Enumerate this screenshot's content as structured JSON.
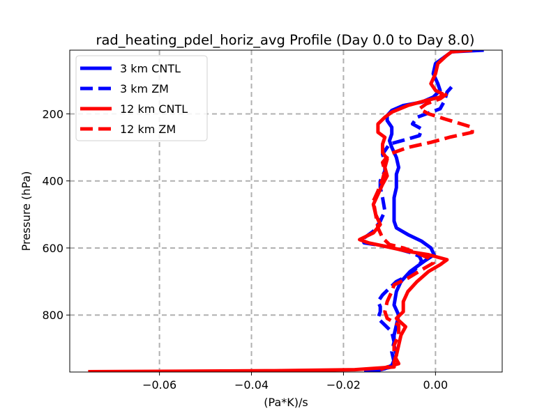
{
  "chart_data": {
    "type": "line",
    "title": "rad_heating_pdel_horiz_avg Profile (Day 0.0 to Day 8.0)",
    "xlabel": "(Pa*K)/s",
    "ylabel": "Pressure (hPa)",
    "xlim": [
      -0.0795,
      0.0145
    ],
    "ylim": [
      970,
      10
    ],
    "y_inverted": true,
    "grid": true,
    "legend_position": "upper-left",
    "xticks": [
      -0.06,
      -0.04,
      -0.02,
      0.0
    ],
    "xtick_labels": [
      "−0.06",
      "−0.04",
      "−0.02",
      "0.00"
    ],
    "yticks": [
      200,
      400,
      600,
      800
    ],
    "ytick_labels": [
      "200",
      "400",
      "600",
      "800"
    ],
    "series": [
      {
        "name": "3 km CNTL",
        "color": "#0000ff",
        "style": "solid",
        "points": [
          [
            0.0105,
            10
          ],
          [
            0.0035,
            15
          ],
          [
            0.0025,
            25
          ],
          [
            0.0,
            50
          ],
          [
            -0.0005,
            80
          ],
          [
            0.0005,
            110
          ],
          [
            0.001,
            130
          ],
          [
            -0.0005,
            150
          ],
          [
            -0.003,
            165
          ],
          [
            -0.007,
            175
          ],
          [
            -0.0095,
            190
          ],
          [
            -0.0105,
            205
          ],
          [
            -0.0105,
            220
          ],
          [
            -0.0095,
            240
          ],
          [
            -0.0095,
            260
          ],
          [
            -0.01,
            280
          ],
          [
            -0.0095,
            300
          ],
          [
            -0.0085,
            330
          ],
          [
            -0.008,
            360
          ],
          [
            -0.0085,
            380
          ],
          [
            -0.0085,
            400
          ],
          [
            -0.0085,
            420
          ],
          [
            -0.009,
            450
          ],
          [
            -0.009,
            480
          ],
          [
            -0.009,
            520
          ],
          [
            -0.0085,
            540
          ],
          [
            -0.006,
            560
          ],
          [
            -0.003,
            580
          ],
          [
            -0.001,
            600
          ],
          [
            -0.0003,
            620
          ],
          [
            -0.0025,
            640
          ],
          [
            -0.0055,
            670
          ],
          [
            -0.0075,
            700
          ],
          [
            -0.0085,
            730
          ],
          [
            -0.009,
            770
          ],
          [
            -0.008,
            800
          ],
          [
            -0.0085,
            830
          ],
          [
            -0.009,
            860
          ],
          [
            -0.009,
            890
          ],
          [
            -0.0085,
            920
          ],
          [
            -0.0095,
            950
          ],
          [
            -0.011,
            960
          ],
          [
            -0.0125,
            965
          ],
          [
            -0.0155,
            968
          ]
        ]
      },
      {
        "name": "3 km ZM",
        "color": "#0000ff",
        "style": "dashed",
        "points": [
          [
            0.0035,
            120
          ],
          [
            0.0025,
            135
          ],
          [
            0.002,
            160
          ],
          [
            0.001,
            185
          ],
          [
            -0.002,
            200
          ],
          [
            -0.004,
            210
          ],
          [
            -0.005,
            230
          ],
          [
            -0.003,
            245
          ],
          [
            -0.0035,
            265
          ],
          [
            -0.006,
            275
          ],
          [
            -0.01,
            290
          ],
          [
            -0.0115,
            320
          ],
          [
            -0.011,
            345
          ],
          [
            -0.011,
            370
          ],
          [
            -0.012,
            400
          ],
          [
            -0.012,
            420
          ],
          [
            -0.0115,
            450
          ],
          [
            -0.011,
            490
          ],
          [
            -0.012,
            520
          ],
          [
            -0.0135,
            550
          ],
          [
            -0.016,
            575
          ],
          [
            -0.0155,
            585
          ],
          [
            -0.013,
            590
          ],
          [
            -0.009,
            600
          ],
          [
            -0.005,
            615
          ],
          [
            -0.0035,
            625
          ],
          [
            -0.003,
            640
          ],
          [
            -0.0045,
            665
          ],
          [
            -0.007,
            690
          ],
          [
            -0.0085,
            700
          ],
          [
            -0.01,
            720
          ],
          [
            -0.0115,
            740
          ],
          [
            -0.0125,
            760
          ],
          [
            -0.012,
            775
          ],
          [
            -0.012,
            790
          ],
          [
            -0.0125,
            810
          ],
          [
            -0.011,
            830
          ],
          [
            -0.0095,
            850
          ],
          [
            -0.009,
            880
          ],
          [
            -0.0095,
            910
          ],
          [
            -0.009,
            940
          ],
          [
            -0.0095,
            955
          ],
          [
            -0.012,
            962
          ],
          [
            -0.0155,
            966
          ]
        ]
      },
      {
        "name": "12 km CNTL",
        "color": "#ff0000",
        "style": "solid",
        "points": [
          [
            0.008,
            10
          ],
          [
            0.0035,
            15
          ],
          [
            0.0025,
            25
          ],
          [
            0.0005,
            50
          ],
          [
            0.0,
            80
          ],
          [
            -0.001,
            110
          ],
          [
            0.0,
            130
          ],
          [
            0.0015,
            140
          ],
          [
            0.001,
            150
          ],
          [
            -0.002,
            160
          ],
          [
            -0.006,
            175
          ],
          [
            -0.0095,
            195
          ],
          [
            -0.011,
            210
          ],
          [
            -0.0125,
            230
          ],
          [
            -0.0125,
            255
          ],
          [
            -0.011,
            270
          ],
          [
            -0.0115,
            290
          ],
          [
            -0.0115,
            315
          ],
          [
            -0.0105,
            335
          ],
          [
            -0.011,
            360
          ],
          [
            -0.0105,
            385
          ],
          [
            -0.0115,
            410
          ],
          [
            -0.0125,
            440
          ],
          [
            -0.0135,
            470
          ],
          [
            -0.013,
            500
          ],
          [
            -0.012,
            530
          ],
          [
            -0.0135,
            555
          ],
          [
            -0.0165,
            575
          ],
          [
            -0.0145,
            585
          ],
          [
            -0.011,
            595
          ],
          [
            -0.006,
            610
          ],
          [
            -0.0015,
            620
          ],
          [
            0.0025,
            635
          ],
          [
            0.001,
            650
          ],
          [
            -0.0015,
            670
          ],
          [
            -0.004,
            700
          ],
          [
            -0.006,
            730
          ],
          [
            -0.007,
            760
          ],
          [
            -0.007,
            790
          ],
          [
            -0.0085,
            810
          ],
          [
            -0.0065,
            835
          ],
          [
            -0.0075,
            860
          ],
          [
            -0.008,
            890
          ],
          [
            -0.0085,
            920
          ],
          [
            -0.009,
            940
          ],
          [
            -0.009,
            955
          ],
          [
            -0.0175,
            963
          ],
          [
            -0.035,
            966
          ],
          [
            -0.06,
            968
          ],
          [
            -0.0755,
            969
          ]
        ]
      },
      {
        "name": "12 km ZM",
        "color": "#ff0000",
        "style": "dashed",
        "points": [
          [
            0.0025,
            140
          ],
          [
            0.001,
            155
          ],
          [
            -0.002,
            170
          ],
          [
            -0.0035,
            185
          ],
          [
            -0.0015,
            200
          ],
          [
            0.002,
            215
          ],
          [
            0.008,
            240
          ],
          [
            0.008,
            255
          ],
          [
            0.003,
            270
          ],
          [
            -0.001,
            285
          ],
          [
            -0.006,
            300
          ],
          [
            -0.01,
            320
          ],
          [
            -0.0115,
            345
          ],
          [
            -0.011,
            370
          ],
          [
            -0.0115,
            395
          ],
          [
            -0.0125,
            430
          ],
          [
            -0.0135,
            460
          ],
          [
            -0.013,
            500
          ],
          [
            -0.0125,
            540
          ],
          [
            -0.0115,
            570
          ],
          [
            -0.01,
            590
          ],
          [
            -0.007,
            600
          ],
          [
            -0.004,
            615
          ],
          [
            -0.0015,
            630
          ],
          [
            -0.0005,
            645
          ],
          [
            -0.003,
            665
          ],
          [
            -0.006,
            690
          ],
          [
            -0.009,
            710
          ],
          [
            -0.0095,
            730
          ],
          [
            -0.0105,
            760
          ],
          [
            -0.011,
            790
          ],
          [
            -0.0105,
            810
          ],
          [
            -0.008,
            830
          ],
          [
            -0.008,
            860
          ],
          [
            -0.009,
            890
          ],
          [
            -0.009,
            920
          ],
          [
            -0.008,
            945
          ],
          [
            -0.0105,
            955
          ],
          [
            -0.012,
            962
          ]
        ]
      }
    ]
  }
}
